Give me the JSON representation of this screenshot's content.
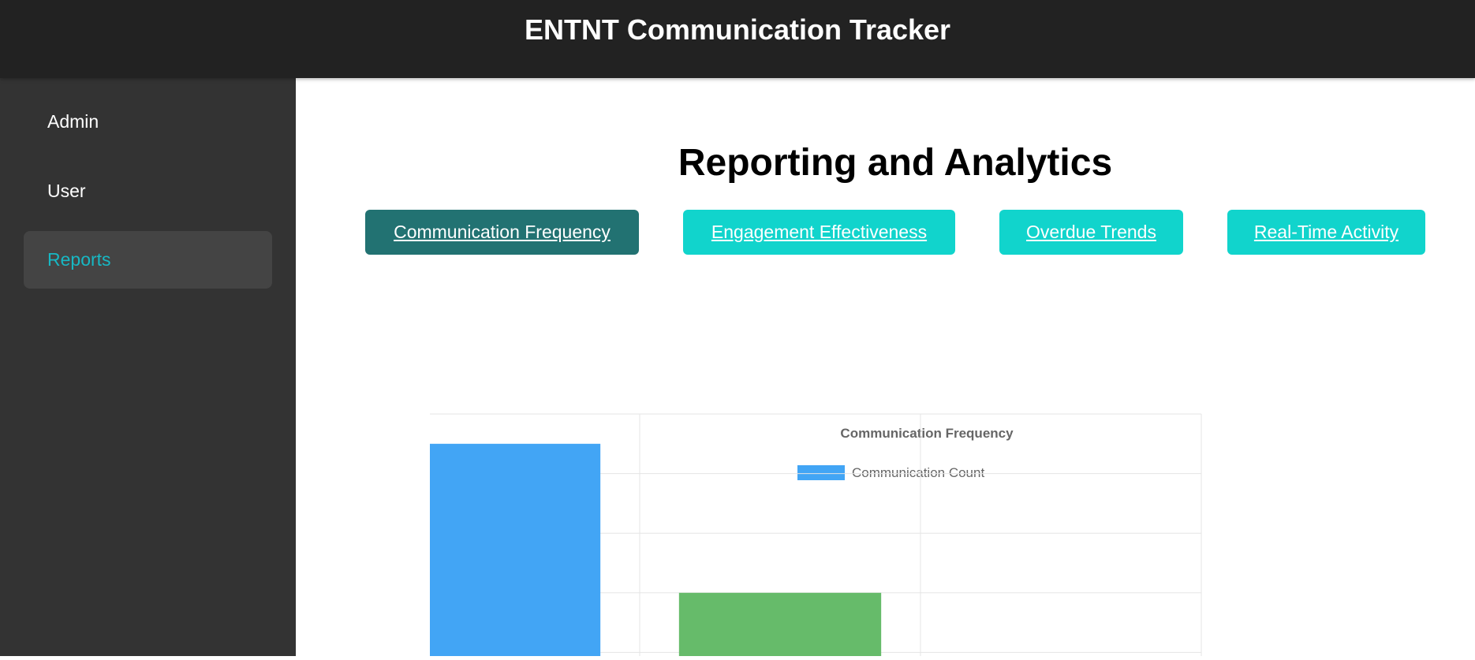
{
  "app": {
    "title": "ENTNT Communication Tracker"
  },
  "sidebar": {
    "items": [
      {
        "label": "Admin",
        "active": false
      },
      {
        "label": "User",
        "active": false
      },
      {
        "label": "Reports",
        "active": true
      }
    ]
  },
  "main": {
    "title": "Reporting and Analytics",
    "tabs": [
      {
        "label": "Communication Frequency",
        "active": true
      },
      {
        "label": "Engagement Effectiveness",
        "active": false
      },
      {
        "label": "Overdue Trends",
        "active": false
      },
      {
        "label": "Real-Time Activity",
        "active": false
      }
    ]
  },
  "colors": {
    "header_bg": "#222222",
    "sidebar_bg": "#333333",
    "active_nav_text": "#17b8c4",
    "tab_bg": "#11d4cc",
    "tab_active_bg": "#227272"
  },
  "chart_data": {
    "type": "bar",
    "title": "Communication Frequency",
    "legend": {
      "label": "Communication Count",
      "position": "top",
      "color": "#42a5f5"
    },
    "y_ticks": [
      80,
      100,
      120,
      140,
      160
    ],
    "ylim": [
      80,
      160
    ],
    "n_categories": 3,
    "values": [
      150,
      100,
      null
    ],
    "bar_colors": [
      "#42a5f5",
      "#66bb6a",
      "#ffa726"
    ],
    "grid": true
  }
}
